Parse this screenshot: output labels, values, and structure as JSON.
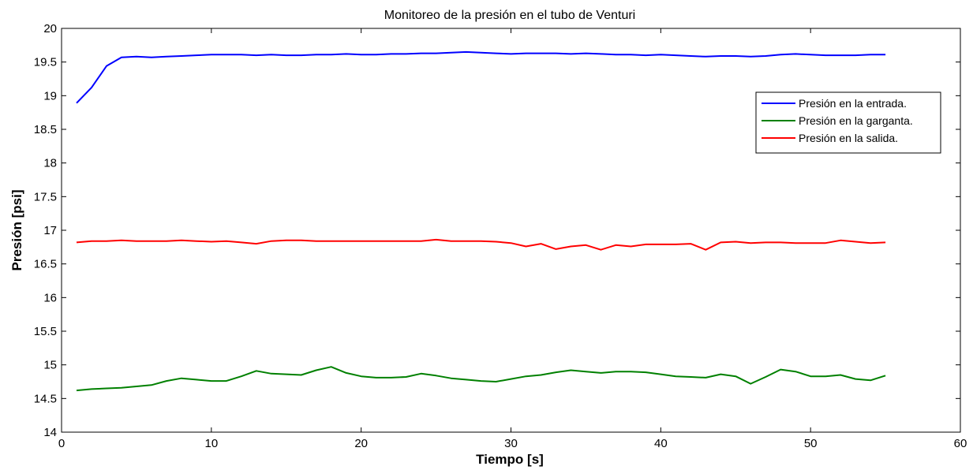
{
  "chart_data": {
    "type": "line",
    "title": "Monitoreo de la presión en el tubo de Venturi",
    "xlabel": "Tiempo [s]",
    "ylabel": "Presión [psi]",
    "xlim": [
      0,
      60
    ],
    "ylim": [
      14,
      20
    ],
    "xticks": [
      0,
      10,
      20,
      30,
      40,
      50,
      60
    ],
    "yticks": [
      14,
      14.5,
      15,
      15.5,
      16,
      16.5,
      17,
      17.5,
      18,
      18.5,
      19,
      19.5,
      20
    ],
    "ytick_labels": [
      "14",
      "14.5",
      "15",
      "15.5",
      "16",
      "16.5",
      "17",
      "17.5",
      "18",
      "18.5",
      "19",
      "19.5",
      "20"
    ],
    "xtick_labels": [
      "0",
      "10",
      "20",
      "30",
      "40",
      "50",
      "60"
    ],
    "grid": false,
    "legend_position": "top-right",
    "x": [
      1,
      2,
      3,
      4,
      5,
      6,
      7,
      8,
      9,
      10,
      11,
      12,
      13,
      14,
      15,
      16,
      17,
      18,
      19,
      20,
      21,
      22,
      23,
      24,
      25,
      26,
      27,
      28,
      29,
      30,
      31,
      32,
      33,
      34,
      35,
      36,
      37,
      38,
      39,
      40,
      41,
      42,
      43,
      44,
      45,
      46,
      47,
      48,
      49,
      50,
      51,
      52,
      53,
      54,
      55
    ],
    "series": [
      {
        "name": "Presión en la entrada.",
        "color": "#0000ff",
        "values": [
          18.89,
          19.12,
          19.44,
          19.57,
          19.58,
          19.57,
          19.58,
          19.59,
          19.6,
          19.61,
          19.61,
          19.61,
          19.6,
          19.61,
          19.6,
          19.6,
          19.61,
          19.61,
          19.62,
          19.61,
          19.61,
          19.62,
          19.62,
          19.63,
          19.63,
          19.64,
          19.65,
          19.64,
          19.63,
          19.62,
          19.63,
          19.63,
          19.63,
          19.62,
          19.63,
          19.62,
          19.61,
          19.61,
          19.6,
          19.61,
          19.6,
          19.59,
          19.58,
          19.59,
          19.59,
          19.58,
          19.59,
          19.61,
          19.62,
          19.61,
          19.6,
          19.6,
          19.6,
          19.61,
          19.61
        ]
      },
      {
        "name": "Presión en la garganta.",
        "color": "#008000",
        "values": [
          14.62,
          14.64,
          14.65,
          14.66,
          14.68,
          14.7,
          14.76,
          14.8,
          14.78,
          14.76,
          14.76,
          14.83,
          14.91,
          14.87,
          14.86,
          14.85,
          14.92,
          14.97,
          14.88,
          14.83,
          14.81,
          14.81,
          14.82,
          14.87,
          14.84,
          14.8,
          14.78,
          14.76,
          14.75,
          14.79,
          14.83,
          14.85,
          14.89,
          14.92,
          14.9,
          14.88,
          14.9,
          14.9,
          14.89,
          14.86,
          14.83,
          14.82,
          14.81,
          14.86,
          14.83,
          14.72,
          14.82,
          14.93,
          14.9,
          14.83,
          14.83,
          14.85,
          14.79,
          14.77,
          14.84
        ]
      },
      {
        "name": "Presión en la salida.",
        "color": "#ff0000",
        "values": [
          16.82,
          16.84,
          16.84,
          16.85,
          16.84,
          16.84,
          16.84,
          16.85,
          16.84,
          16.83,
          16.84,
          16.82,
          16.8,
          16.84,
          16.85,
          16.85,
          16.84,
          16.84,
          16.84,
          16.84,
          16.84,
          16.84,
          16.84,
          16.84,
          16.86,
          16.84,
          16.84,
          16.84,
          16.83,
          16.81,
          16.76,
          16.8,
          16.72,
          16.76,
          16.78,
          16.71,
          16.78,
          16.76,
          16.79,
          16.79,
          16.79,
          16.8,
          16.71,
          16.82,
          16.83,
          16.81,
          16.82,
          16.82,
          16.81,
          16.81,
          16.81,
          16.85,
          16.83,
          16.81,
          16.82
        ]
      }
    ]
  }
}
